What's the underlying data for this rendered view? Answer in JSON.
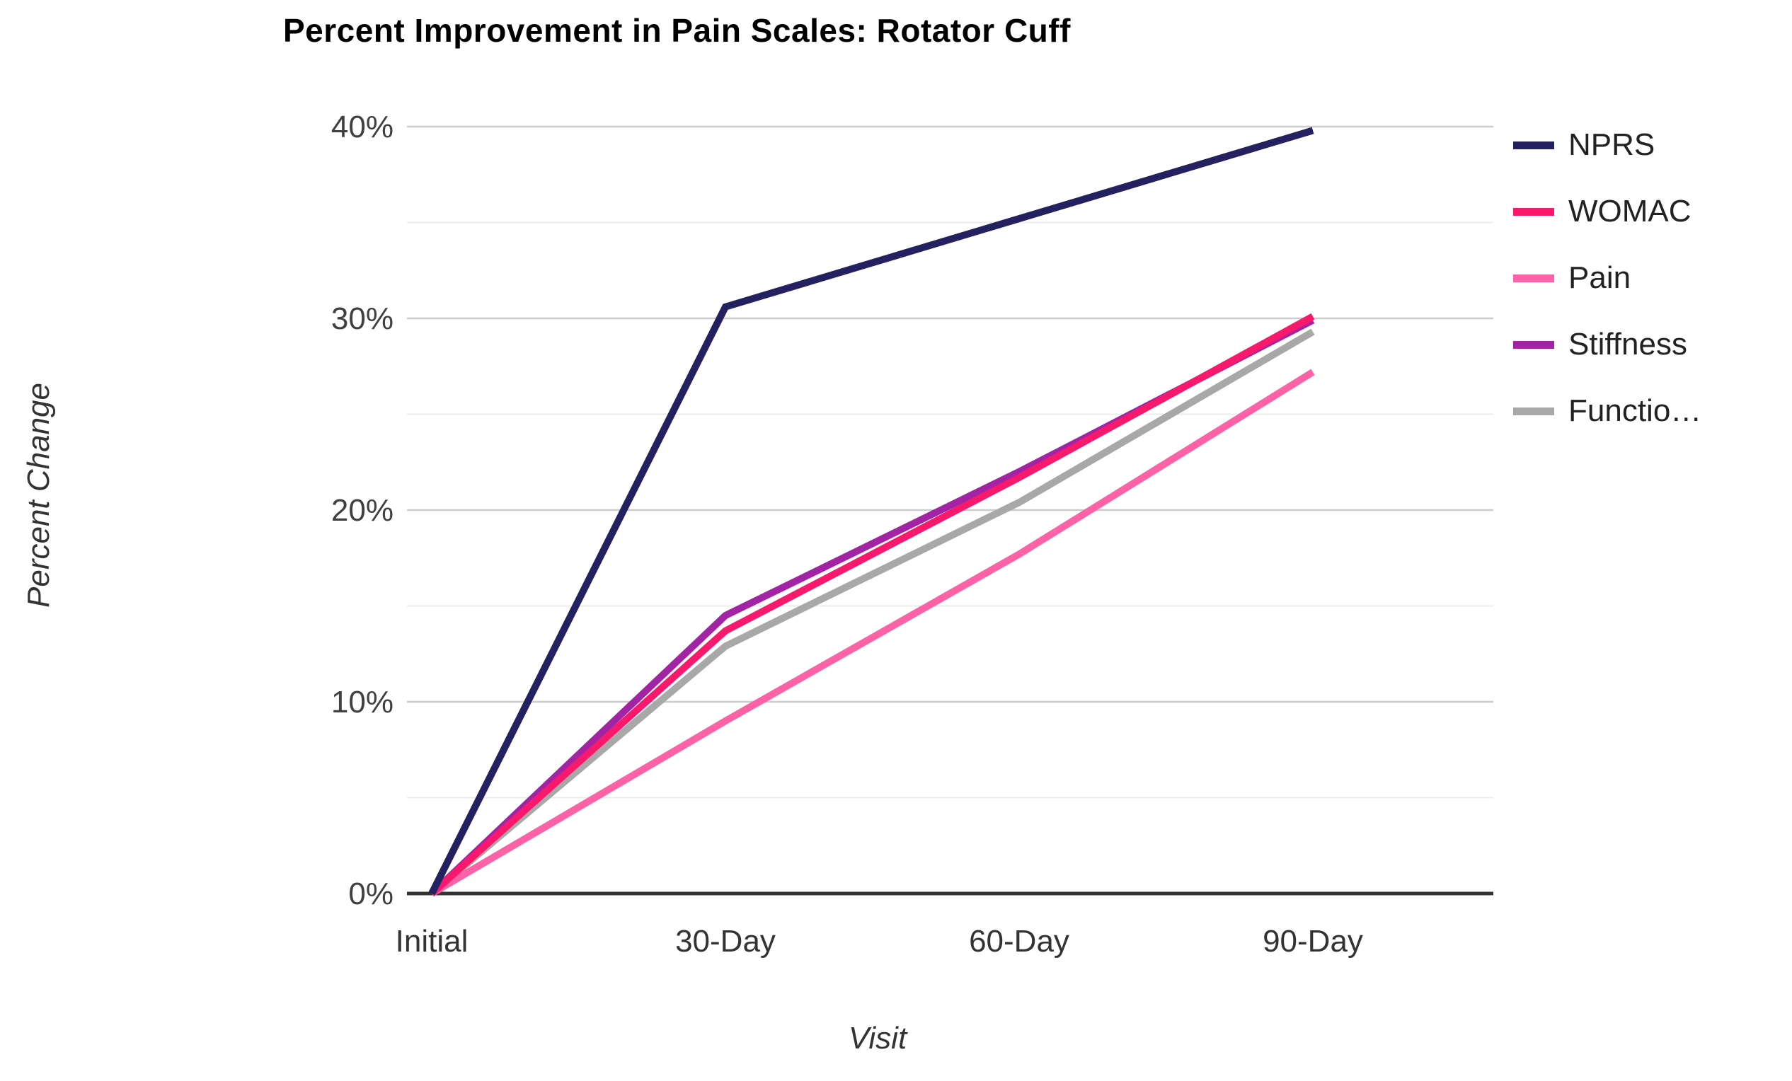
{
  "chart_data": {
    "type": "line",
    "title": "Percent Improvement in Pain Scales: Rotator Cuff",
    "xlabel": "Visit",
    "ylabel": "Percent Change",
    "categories": [
      "Initial",
      "30-Day",
      "60-Day",
      "90-Day"
    ],
    "series": [
      {
        "name": "NPRS",
        "legend_label": "NPRS",
        "color": "#23215f",
        "values": [
          0,
          30.6,
          35.2,
          39.8
        ]
      },
      {
        "name": "WOMAC",
        "legend_label": "WOMAC",
        "color": "#f8196d",
        "values": [
          0,
          13.7,
          21.7,
          30.1
        ]
      },
      {
        "name": "Pain",
        "legend_label": "Pain",
        "color": "#fd62a7",
        "values": [
          0,
          9.0,
          17.7,
          27.2
        ]
      },
      {
        "name": "Stiffness",
        "legend_label": "Stiffness",
        "color": "#a224a5",
        "values": [
          0,
          14.5,
          22.0,
          29.9
        ]
      },
      {
        "name": "Function",
        "legend_label": "Functio…",
        "color": "#a8a8a8",
        "values": [
          0,
          12.9,
          20.4,
          29.3
        ]
      }
    ],
    "ylim": [
      0,
      40
    ],
    "y_ticks": [
      {
        "value": 0,
        "label": "0%"
      },
      {
        "value": 10,
        "label": "10%"
      },
      {
        "value": 20,
        "label": "20%"
      },
      {
        "value": 30,
        "label": "30%"
      },
      {
        "value": 40,
        "label": "40%"
      }
    ],
    "y_minor_ticks": [
      5,
      15,
      25,
      35
    ],
    "grid": true,
    "legend_position": "right",
    "colors": {
      "axis_line": "#333333",
      "major_grid": "#cccccc",
      "minor_grid": "#ececec",
      "tick_label": "#404040",
      "x_tick_label": "#333333",
      "title": "#000000",
      "axis_title": "#333333",
      "background": "#ffffff"
    }
  }
}
